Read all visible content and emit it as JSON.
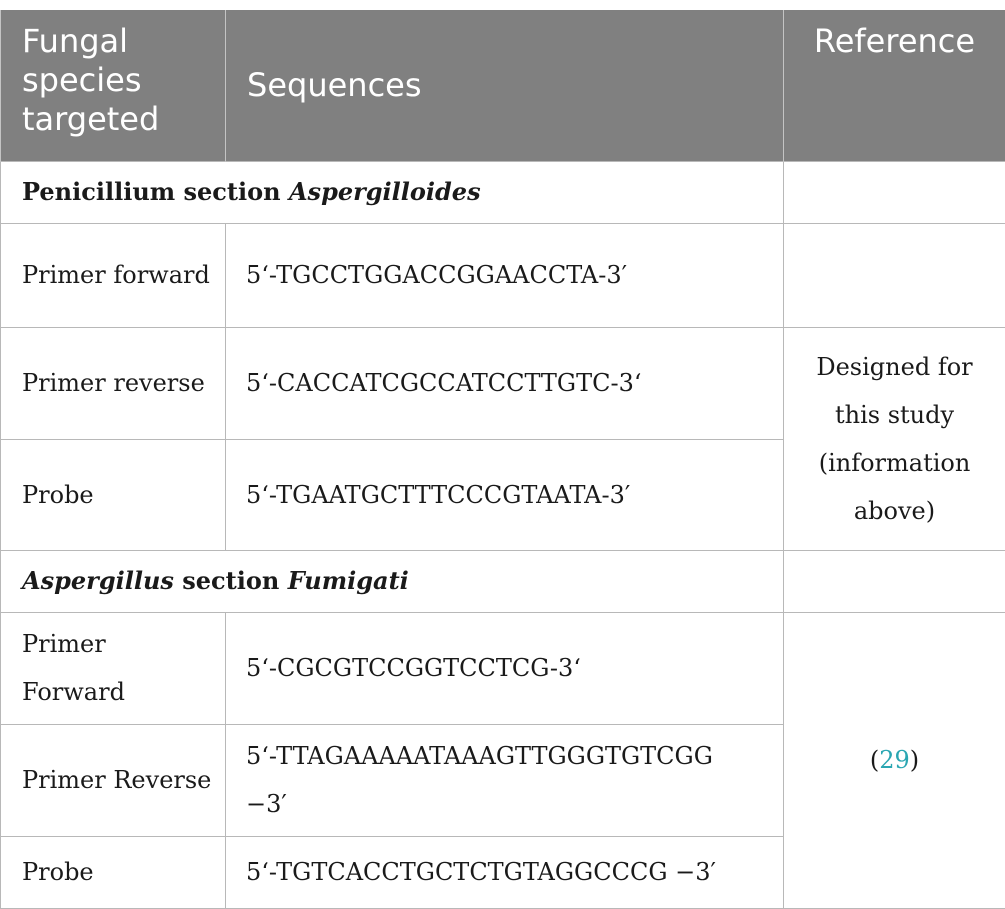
{
  "header": {
    "col1": [
      "Fungal",
      "species",
      "targeted"
    ],
    "col2": "Sequences",
    "col3": "Reference"
  },
  "sections": [
    {
      "title_plain": "Penicillium section ",
      "title_italic": "Aspergilloides",
      "rows": [
        {
          "label": "Primer forward",
          "sequence": "5‘-TGCCTGGACCGGAACCTA-3′"
        },
        {
          "label": "Primer reverse",
          "sequence": "5‘-CACCATCGCCATCCTTGTC-3‘"
        },
        {
          "label": "Probe",
          "sequence": "5‘-TGAATGCTTTCCCGTAATA-3′"
        }
      ],
      "reference_lines": [
        "Designed for",
        "this study",
        "(information",
        "above)"
      ]
    },
    {
      "title_italic": "Aspergillus",
      "title_plain": " section ",
      "title_italic2": "Fumigati",
      "rows": [
        {
          "label_lines": [
            "Primer",
            "Forward"
          ],
          "sequence": "5‘-CGCGTCCGGTCCTCG-3‘"
        },
        {
          "label": "Primer Reverse",
          "sequence_lines": [
            "5‘-TTAGAAAAATAAAGTTGGGTGTCGG",
            "−3′"
          ]
        },
        {
          "label": "Probe",
          "sequence": "5‘-TGTCACCTGCTCTGTAGGCCCG −3′"
        }
      ],
      "reference": {
        "open": "(",
        "number": "29",
        "close": ")"
      }
    }
  ]
}
